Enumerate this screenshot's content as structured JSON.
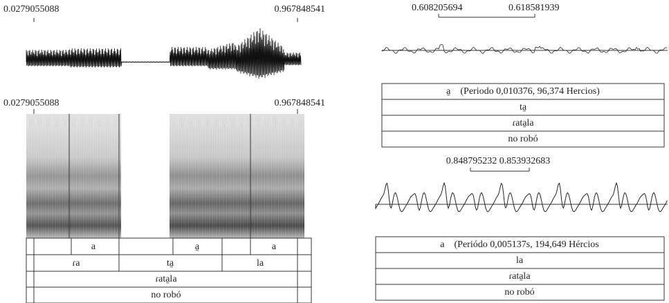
{
  "left": {
    "waveform_labels": [
      "0.0279055088",
      "0.967848541"
    ],
    "spectrogram_labels": [
      "0.0279055088",
      "0.967848541"
    ],
    "tiers": {
      "segments": [
        "a",
        "a̱",
        "a"
      ],
      "syllables": [
        "ɾa",
        "ta̱",
        "la"
      ],
      "word": "ɾata̱la",
      "gloss": "no robó"
    }
  },
  "right": {
    "top": {
      "labels": [
        "0.608205694",
        "0.618581939"
      ],
      "rows": [
        "a̱    (Periodo 0,010376, 96,374 Hercios)",
        "ta̱",
        "ɾata̱la",
        "no robó"
      ]
    },
    "bottom": {
      "label": "0.848795232 0.853932683",
      "rows": [
        "a    (Periódo 0,005137s, 194,649 Hércios",
        "la",
        "ɾata̱la",
        "no robó"
      ]
    }
  }
}
